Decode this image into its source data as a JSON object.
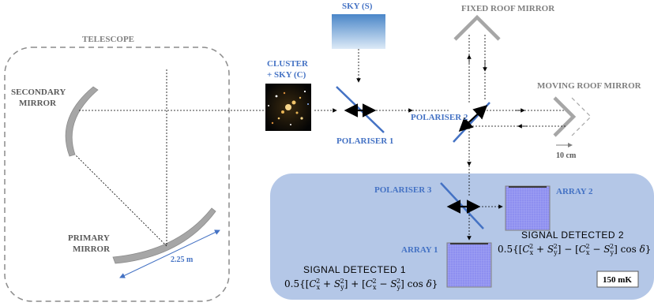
{
  "labels": {
    "telescope": "TELESCOPE",
    "secondary_mirror_1": "SECONDARY",
    "secondary_mirror_2": "MIRROR",
    "primary_mirror_1": "PRIMARY",
    "primary_mirror_2": "MIRROR",
    "dimension": "2.25 m",
    "cluster_1": "CLUSTER",
    "cluster_2": "+ SKY (C)",
    "sky": "SKY (S)",
    "polariser_1": "POLARISER 1",
    "polariser_2": "POLARISER 2",
    "polariser_3": "POLARISER 3",
    "fixed_mirror": "FIXED ROOF MIRROR",
    "moving_mirror": "MOVING ROOF MIRROR",
    "travel": "10 cm",
    "array_1": "ARRAY 1",
    "array_2": "ARRAY 2",
    "signal_1": "SIGNAL  DETECTED 1",
    "signal_2": "SIGNAL  DETECTED  2",
    "temperature": "150 mK"
  },
  "colors": {
    "mirror": "#a6a6a6",
    "polariser": "#4472c4",
    "cold_box": "#b4c7e7",
    "array": "#8e8ff0",
    "array_border": "#7f7f7f",
    "sky_top": "#4a86c8",
    "sky_bottom": "#dceaf7"
  },
  "icons": {
    "cluster_image": "galaxy-cluster-image",
    "sky_image": "sky-gradient-image",
    "polarization_arrows": "double-headed-arrow-icon"
  }
}
